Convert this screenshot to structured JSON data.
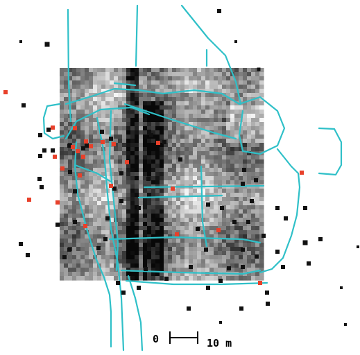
{
  "scale_bar": {
    "zero_label": "0",
    "length_label": "10 m"
  },
  "colors": {
    "feature_lines": "#2fc0c8",
    "black_finds": "#111111",
    "red_finds": "#e8402a",
    "raster_dark": "#0a0a0a",
    "raster_light": "#f2f2f2"
  },
  "icons": {
    "black_find": "black-square-marker",
    "red_find": "red-square-marker"
  }
}
